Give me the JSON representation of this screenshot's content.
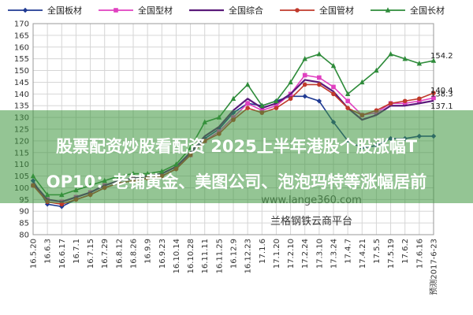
{
  "chart_data": {
    "type": "line",
    "ylim": [
      80,
      170
    ],
    "yticks": [
      80,
      85,
      90,
      95,
      100,
      105,
      110,
      115,
      120,
      125,
      130,
      135,
      140,
      145,
      150,
      155,
      160,
      165,
      170
    ],
    "categories": [
      "16.5.20",
      "16.6.3",
      "16.6.17",
      "16.7.1",
      "16.7.15",
      "16.7.29",
      "16.8.12",
      "16.8.26",
      "16.9.9",
      "16.9.23",
      "16.10.14",
      "16.10.28",
      "16.11.11",
      "16.11.25",
      "16.12.9",
      "16.12.23",
      "17.1.6",
      "17.1.20",
      "17.2.10",
      "17.2.24",
      "17.3.10",
      "17.3.24",
      "17.4.7",
      "17.4.21",
      "17.5.5",
      "17.5.19",
      "17.6.2",
      "17.6.16",
      "预测2017-6-23"
    ],
    "grid": true,
    "legend_position": "top",
    "series": [
      {
        "name": "全国板材",
        "color": "#1f3a93",
        "marker": "diamond",
        "values": [
          103,
          93,
          92,
          95,
          97,
          100,
          102,
          103,
          104,
          105,
          108,
          114,
          121,
          125,
          132,
          136,
          135,
          137,
          139,
          139,
          137,
          128,
          120,
          117,
          118,
          121,
          121,
          122,
          122
        ]
      },
      {
        "name": "全国型材",
        "color": "#e040c0",
        "marker": "square",
        "values": [
          101,
          95,
          94,
          96,
          98,
          101,
          103,
          104,
          105,
          106,
          109,
          114,
          120,
          124,
          130,
          136,
          133,
          135,
          140,
          148,
          147,
          143,
          137,
          131,
          132,
          136,
          136,
          137,
          138.3
        ]
      },
      {
        "name": "全国综合",
        "color": "#5a1a7a",
        "marker": "none",
        "values": [
          102,
          95,
          94,
          96,
          98,
          101,
          103,
          104,
          105,
          106,
          109,
          115,
          122,
          126,
          133,
          138,
          134,
          136,
          140,
          146,
          145,
          141,
          134,
          129,
          131,
          135,
          135,
          136,
          137.1
        ]
      },
      {
        "name": "全国管材",
        "color": "#c0392b",
        "marker": "circle",
        "values": [
          101,
          94,
          93,
          95,
          97,
          100,
          102,
          103,
          104,
          105,
          108,
          114,
          120,
          123,
          129,
          134,
          132,
          134,
          138,
          144,
          144,
          140,
          134,
          131,
          133,
          136,
          137,
          138,
          140.4
        ]
      },
      {
        "name": "全国长材",
        "color": "#2e8b3a",
        "marker": "triangle",
        "values": [
          105,
          97,
          97,
          99,
          101,
          103,
          105,
          106,
          106,
          107,
          110,
          117,
          128,
          130,
          138,
          144,
          135,
          137,
          145,
          155,
          157,
          152,
          140,
          145,
          150,
          157,
          155,
          153,
          154.2
        ]
      }
    ],
    "data_labels": [
      "154.2",
      "140.4",
      "138.3",
      "137.1"
    ]
  },
  "watermark": "www.lange360.com",
  "source_logo": "兰格钢铁云商平台",
  "banner": {
    "line1": "股票配资炒股看配资 2025上半年港股个股涨幅T",
    "line2": "OP10：老铺黄金、美图公司、泡泡玛特等涨幅居前"
  }
}
